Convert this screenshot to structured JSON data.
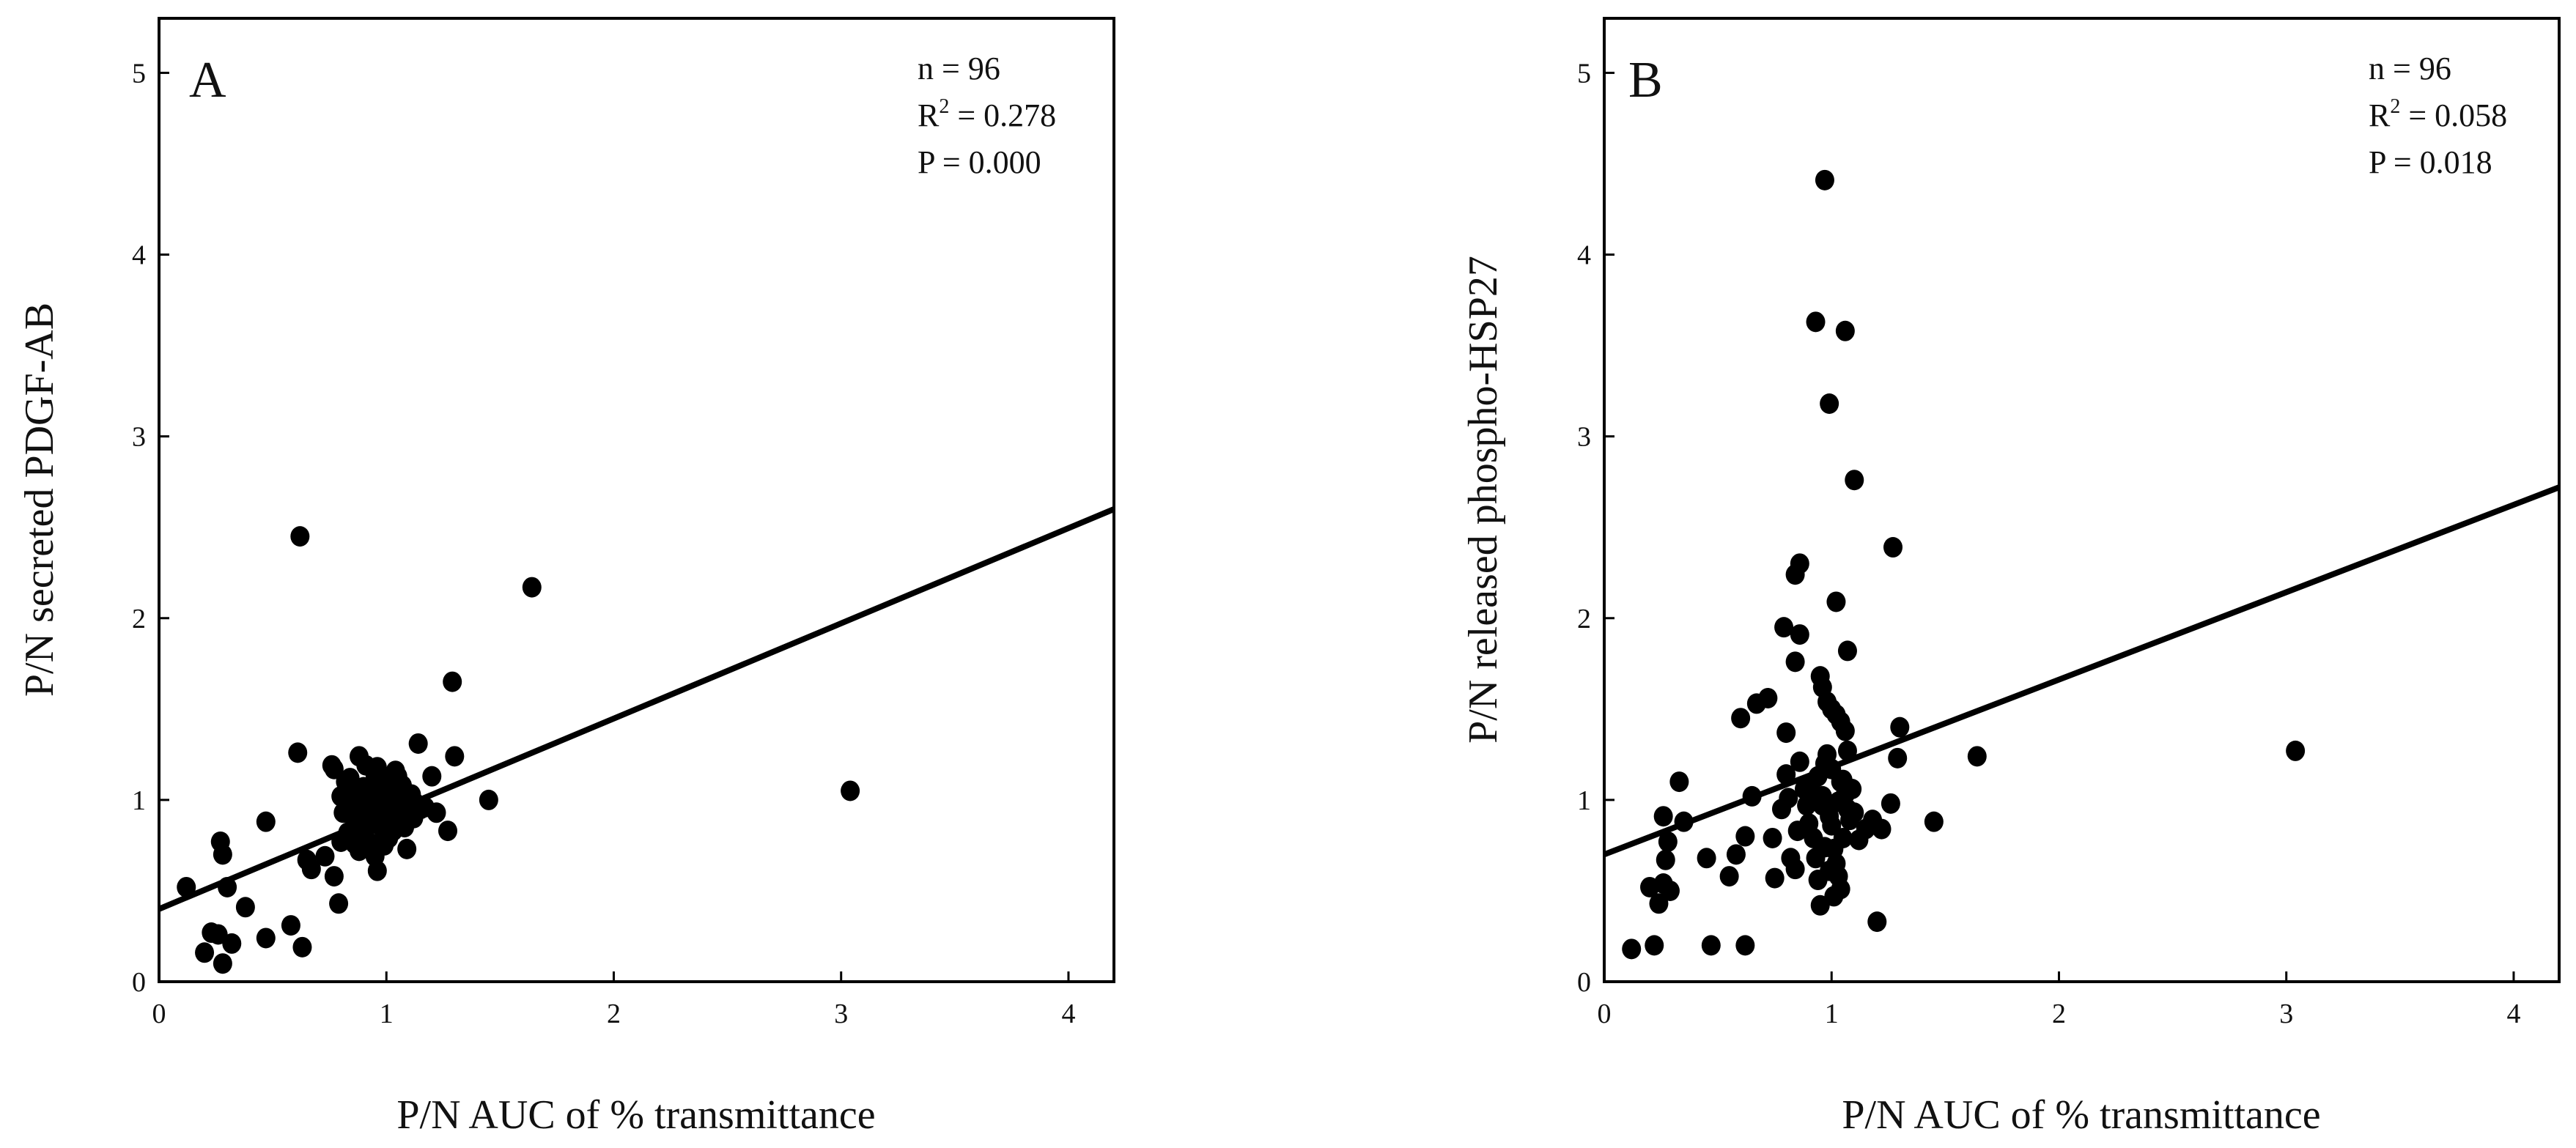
{
  "chart_data": [
    {
      "type": "scatter",
      "panel": "A",
      "xlabel": "P/N AUC of % transmittance",
      "ylabel": "P/N  secreted PDGF-AB",
      "xlim": [
        0,
        4.2
      ],
      "ylim": [
        0,
        5.3
      ],
      "xticks": [
        "0",
        "1",
        "2",
        "3",
        "4"
      ],
      "yticks": [
        "0",
        "1",
        "2",
        "3",
        "4",
        "5"
      ],
      "stats": {
        "n": "n = 96",
        "r2_prefix": "R",
        "r2_sup": "2",
        "r2_value": " = 0.278",
        "p": "P = 0.000"
      },
      "fit_line": {
        "x": [
          0,
          4.2
        ],
        "y": [
          0.4,
          2.6
        ]
      },
      "points": [
        [
          0.62,
          2.45
        ],
        [
          1.64,
          2.17
        ],
        [
          1.29,
          1.65
        ],
        [
          3.04,
          1.05
        ],
        [
          0.61,
          1.26
        ],
        [
          1.45,
          1.0
        ],
        [
          1.3,
          1.24
        ],
        [
          1.14,
          1.31
        ],
        [
          1.2,
          1.13
        ],
        [
          1.22,
          0.93
        ],
        [
          1.27,
          0.83
        ],
        [
          0.12,
          0.52
        ],
        [
          0.27,
          0.77
        ],
        [
          0.28,
          0.7
        ],
        [
          0.3,
          0.52
        ],
        [
          0.38,
          0.41
        ],
        [
          0.47,
          0.88
        ],
        [
          0.47,
          0.24
        ],
        [
          0.58,
          0.31
        ],
        [
          0.23,
          0.27
        ],
        [
          0.26,
          0.26
        ],
        [
          0.2,
          0.16
        ],
        [
          0.32,
          0.21
        ],
        [
          0.28,
          0.1
        ],
        [
          0.63,
          0.19
        ],
        [
          0.65,
          0.67
        ],
        [
          0.67,
          0.62
        ],
        [
          0.73,
          0.69
        ],
        [
          0.79,
          0.43
        ],
        [
          0.77,
          0.58
        ],
        [
          0.76,
          1.19
        ],
        [
          0.77,
          1.17
        ],
        [
          0.82,
          1.1
        ],
        [
          0.8,
          1.02
        ],
        [
          0.84,
          0.97
        ],
        [
          0.86,
          0.89
        ],
        [
          0.89,
          0.84
        ],
        [
          0.9,
          0.81
        ],
        [
          0.92,
          0.77
        ],
        [
          0.93,
          0.74
        ],
        [
          0.95,
          0.69
        ],
        [
          0.96,
          0.61
        ],
        [
          0.88,
          1.24
        ],
        [
          0.91,
          1.19
        ],
        [
          0.95,
          1.14
        ],
        [
          0.98,
          1.08
        ],
        [
          1.0,
          1.12
        ],
        [
          1.02,
          1.05
        ],
        [
          1.04,
          1.01
        ],
        [
          1.06,
          0.98
        ],
        [
          1.08,
          0.95
        ],
        [
          1.1,
          0.92
        ],
        [
          1.05,
          0.87
        ],
        [
          1.03,
          0.83
        ],
        [
          1.01,
          0.79
        ],
        [
          0.99,
          0.75
        ],
        [
          1.09,
          0.73
        ],
        [
          1.12,
          0.9
        ],
        [
          1.15,
          0.95
        ],
        [
          0.85,
          1.04
        ],
        [
          0.87,
          0.99
        ],
        [
          0.9,
          0.96
        ],
        [
          0.93,
          1.02
        ],
        [
          0.97,
          0.94
        ],
        [
          1.0,
          0.91
        ],
        [
          0.94,
          0.88
        ],
        [
          0.97,
          0.86
        ],
        [
          1.0,
          0.98
        ],
        [
          1.03,
          0.93
        ],
        [
          1.07,
          1.08
        ],
        [
          1.11,
          1.03
        ],
        [
          0.81,
          0.93
        ],
        [
          0.83,
          0.82
        ],
        [
          0.86,
          0.76
        ],
        [
          0.9,
          1.07
        ],
        [
          0.95,
          1.0
        ],
        [
          0.98,
          1.05
        ],
        [
          1.02,
          0.96
        ],
        [
          1.05,
          1.13
        ],
        [
          0.92,
          0.92
        ],
        [
          1.13,
          0.98
        ],
        [
          1.17,
          0.96
        ],
        [
          0.8,
          0.77
        ],
        [
          0.84,
          1.12
        ],
        [
          0.96,
          1.18
        ],
        [
          1.04,
          1.16
        ],
        [
          1.08,
          0.85
        ],
        [
          0.88,
          0.72
        ],
        [
          0.99,
          0.82
        ],
        [
          1.01,
          1.01
        ],
        [
          0.94,
          0.95
        ],
        [
          0.97,
          0.9
        ],
        [
          1.06,
          0.91
        ],
        [
          0.91,
          0.85
        ],
        [
          1.02,
          0.88
        ],
        [
          0.93,
          0.99
        ]
      ]
    },
    {
      "type": "scatter",
      "panel": "B",
      "xlabel": "P/N AUC of % transmittance",
      "ylabel": "P/N  released phospho-HSP27",
      "xlim": [
        0,
        4.2
      ],
      "ylim": [
        0,
        5.3
      ],
      "xticks": [
        "0",
        "1",
        "2",
        "3",
        "4"
      ],
      "yticks": [
        "0",
        "1",
        "2",
        "3",
        "4",
        "5"
      ],
      "stats": {
        "n": "n = 96",
        "r2_prefix": "R",
        "r2_sup": "2",
        "r2_value": " = 0.058",
        "p": "P = 0.018"
      },
      "fit_line": {
        "x": [
          0,
          4.2
        ],
        "y": [
          0.7,
          2.72
        ]
      },
      "points": [
        [
          0.97,
          4.41
        ],
        [
          0.93,
          3.63
        ],
        [
          1.06,
          3.58
        ],
        [
          0.99,
          3.18
        ],
        [
          1.1,
          2.76
        ],
        [
          1.27,
          2.39
        ],
        [
          0.86,
          2.3
        ],
        [
          0.84,
          2.24
        ],
        [
          1.02,
          2.09
        ],
        [
          0.79,
          1.95
        ],
        [
          0.86,
          1.91
        ],
        [
          1.07,
          1.82
        ],
        [
          0.84,
          1.76
        ],
        [
          0.72,
          1.56
        ],
        [
          0.67,
          1.53
        ],
        [
          0.6,
          1.45
        ],
        [
          0.8,
          1.37
        ],
        [
          1.3,
          1.4
        ],
        [
          0.95,
          1.68
        ],
        [
          0.96,
          1.62
        ],
        [
          0.98,
          1.54
        ],
        [
          1.0,
          1.5
        ],
        [
          1.02,
          1.47
        ],
        [
          1.04,
          1.43
        ],
        [
          1.06,
          1.38
        ],
        [
          1.64,
          1.24
        ],
        [
          3.04,
          1.27
        ],
        [
          1.29,
          1.23
        ],
        [
          0.33,
          1.1
        ],
        [
          0.26,
          0.91
        ],
        [
          0.28,
          0.77
        ],
        [
          0.27,
          0.67
        ],
        [
          0.29,
          0.5
        ],
        [
          0.26,
          0.54
        ],
        [
          0.24,
          0.43
        ],
        [
          0.2,
          0.52
        ],
        [
          0.12,
          0.18
        ],
        [
          0.22,
          0.2
        ],
        [
          0.47,
          0.2
        ],
        [
          0.62,
          0.2
        ],
        [
          0.45,
          0.68
        ],
        [
          0.55,
          0.58
        ],
        [
          0.58,
          0.7
        ],
        [
          0.62,
          0.8
        ],
        [
          0.65,
          1.02
        ],
        [
          0.75,
          0.57
        ],
        [
          0.78,
          0.95
        ],
        [
          0.8,
          1.14
        ],
        [
          0.82,
          0.68
        ],
        [
          0.84,
          0.62
        ],
        [
          0.86,
          1.21
        ],
        [
          0.88,
          1.06
        ],
        [
          0.9,
          0.87
        ],
        [
          0.92,
          0.79
        ],
        [
          0.94,
          1.13
        ],
        [
          0.95,
          0.42
        ],
        [
          0.96,
          0.97
        ],
        [
          0.97,
          1.2
        ],
        [
          0.98,
          1.25
        ],
        [
          0.99,
          0.91
        ],
        [
          1.0,
          0.86
        ],
        [
          1.01,
          0.73
        ],
        [
          1.02,
          0.65
        ],
        [
          1.03,
          0.58
        ],
        [
          1.04,
          0.51
        ],
        [
          1.05,
          1.11
        ],
        [
          1.06,
          1.03
        ],
        [
          1.07,
          0.95
        ],
        [
          1.08,
          0.89
        ],
        [
          1.09,
          1.06
        ],
        [
          1.1,
          0.93
        ],
        [
          1.12,
          0.78
        ],
        [
          1.15,
          0.84
        ],
        [
          1.18,
          0.89
        ],
        [
          1.2,
          0.33
        ],
        [
          1.22,
          0.84
        ],
        [
          1.26,
          0.98
        ],
        [
          1.45,
          0.88
        ],
        [
          0.96,
          1.02
        ],
        [
          1.0,
          1.17
        ],
        [
          1.03,
          0.99
        ],
        [
          1.07,
          1.27
        ],
        [
          0.91,
          1.09
        ],
        [
          0.93,
          0.68
        ],
        [
          0.99,
          0.61
        ],
        [
          1.05,
          0.79
        ],
        [
          0.89,
          0.97
        ],
        [
          0.85,
          0.83
        ],
        [
          0.94,
          0.56
        ],
        [
          1.01,
          0.47
        ],
        [
          0.97,
          0.74
        ],
        [
          1.04,
          1.1
        ],
        [
          0.92,
          1.0
        ],
        [
          0.81,
          1.01
        ],
        [
          0.74,
          0.79
        ],
        [
          0.35,
          0.88
        ]
      ]
    }
  ]
}
